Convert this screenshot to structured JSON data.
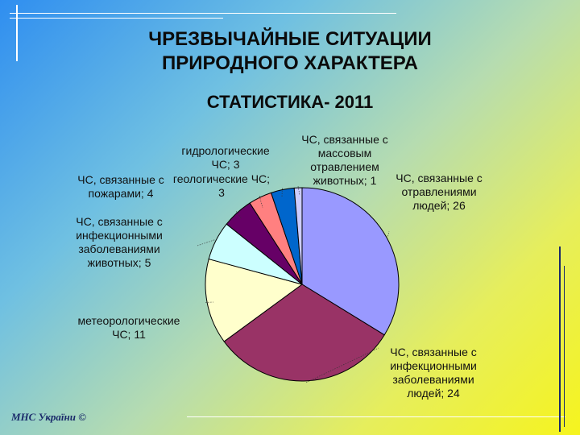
{
  "slide": {
    "title_line1": "ЧРЕЗВЫЧАЙНЫЕ СИТУАЦИИ",
    "title_line2": "ПРИРОДНОГО ХАРАКТЕРА",
    "subtitle": "СТАТИСТИКА- 2011",
    "footer": "МНС України ©"
  },
  "chart_data": {
    "type": "pie",
    "title": "",
    "legend": "none",
    "slices": [
      {
        "label": [
          "ЧС, связанные с",
          "отравлениями",
          "людей; 26"
        ],
        "value": 26,
        "color": "#9999ff"
      },
      {
        "label": [
          "ЧС, связанные с",
          "инфекционными",
          "заболеваниями",
          "людей; 24"
        ],
        "value": 24,
        "color": "#993366"
      },
      {
        "label": [
          "метеорологические",
          "ЧС; 11"
        ],
        "value": 11,
        "color": "#ffffcc"
      },
      {
        "label": [
          "ЧС, связанные с",
          "инфекционными",
          "заболеваниями",
          "животных; 5"
        ],
        "value": 5,
        "color": "#ccffff"
      },
      {
        "label": [
          "ЧС, связанные с",
          "пожарами; 4"
        ],
        "value": 4,
        "color": "#660066"
      },
      {
        "label": [
          "гидрологические",
          "ЧС; 3"
        ],
        "value": 3,
        "color": "#ff8080"
      },
      {
        "label": [
          "геологические ЧС;",
          "3"
        ],
        "value": 3,
        "color": "#0066cc"
      },
      {
        "label": [
          "ЧС, связанные с",
          "массовым",
          "отравлением",
          "животных; 1"
        ],
        "value": 1,
        "color": "#ccccff"
      }
    ]
  }
}
